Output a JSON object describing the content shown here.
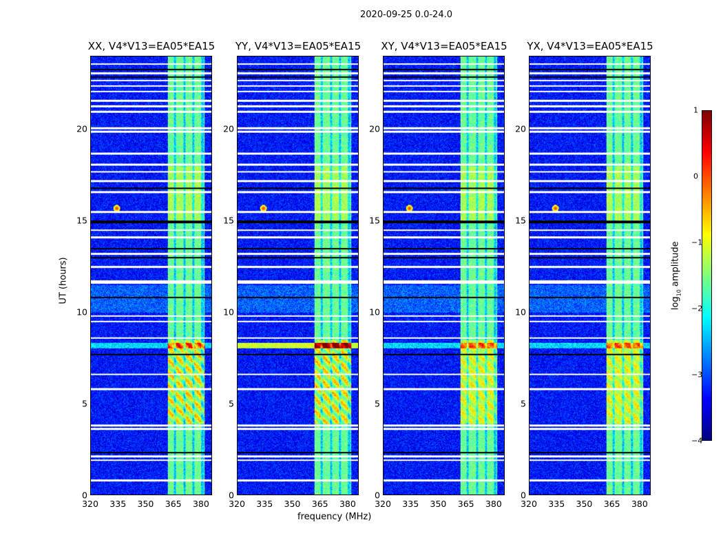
{
  "chart_data": {
    "type": "heatmap",
    "title": "2020-09-25 0.0-24.0",
    "xlabel": "frequency (MHz)",
    "ylabel": "UT (hours)",
    "xlim": [
      320,
      386
    ],
    "ylim": [
      0,
      24
    ],
    "xticks": [
      "320",
      "335",
      "350",
      "365",
      "380"
    ],
    "yticks": [
      "0",
      "5",
      "10",
      "15",
      "20"
    ],
    "panels": [
      {
        "title": "XX, V4*V13=EA05*EA15",
        "cross_pol": false
      },
      {
        "title": "YY, V4*V13=EA05*EA15",
        "cross_pol": false
      },
      {
        "title": "XY, V4*V13=EA05*EA15",
        "cross_pol": true
      },
      {
        "title": "YX, V4*V13=EA05*EA15",
        "cross_pol": true
      }
    ],
    "colorbar": {
      "label_main": "log",
      "label_sub": "10",
      "label_tail": " amplitude",
      "range": [
        -4,
        1
      ],
      "ticks": [
        "1",
        "0",
        "−1",
        "−2",
        "−3",
        "−4"
      ],
      "colormap": "jet"
    },
    "features": {
      "background_log_amp": -3.3,
      "rfi_band_mhz": [
        362,
        382
      ],
      "rfi_band_log_amp": -1.6,
      "band_gaps_mhz": [
        366,
        371,
        376,
        381
      ],
      "strong_burst_hours": [
        3.9,
        8.5
      ],
      "spike": {
        "freq_mhz": 334,
        "time_h": 15.7,
        "log_amp": 0.3
      },
      "wideband_row_h": 8.2,
      "flagged_white_h": [
        0.8,
        1.9,
        2.1,
        3.6,
        3.8,
        5.8,
        6.6,
        8.6,
        9.5,
        9.8,
        11.6,
        11.7,
        12.5,
        13.2,
        14.1,
        14.5,
        15.5,
        16.6,
        17.2,
        17.7,
        18.1,
        18.7,
        19.9,
        20.1,
        21.0,
        21.3,
        21.6,
        22.1,
        22.4,
        22.7,
        23.1,
        23.6
      ],
      "flagged_black_h": [
        2.3,
        7.7,
        10.8,
        13.0,
        13.5,
        14.9,
        15.0,
        16.8,
        22.9,
        23.3
      ]
    }
  }
}
